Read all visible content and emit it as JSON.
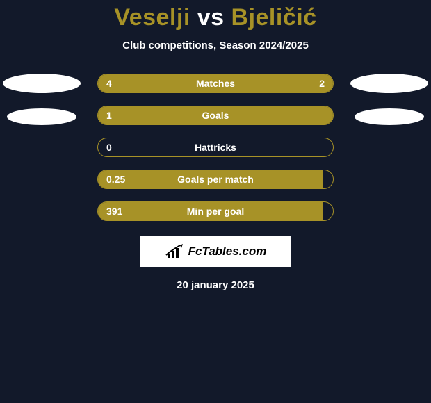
{
  "title_player1": "Veselji",
  "title_vs": "vs",
  "title_player2": "Bjeličić",
  "title_color_player": "#a79227",
  "title_color_vs": "#ffffff",
  "subtitle": "Club competitions, Season 2024/2025",
  "colors": {
    "bar_fill": "#a79227",
    "bar_border": "#a79227",
    "background": "#12192a",
    "text": "#ffffff"
  },
  "player_shapes": {
    "left": {
      "show_big": true,
      "show_small": true
    },
    "right": {
      "show_big": true,
      "show_small": true
    }
  },
  "bars": [
    {
      "label": "Matches",
      "left_value": "4",
      "right_value": "2",
      "left_pct": 66,
      "right_pct": 34
    },
    {
      "label": "Goals",
      "left_value": "1",
      "right_value": "",
      "left_pct": 100,
      "right_pct": 0
    },
    {
      "label": "Hattricks",
      "left_value": "0",
      "right_value": "",
      "left_pct": 0,
      "right_pct": 0
    },
    {
      "label": "Goals per match",
      "left_value": "0.25",
      "right_value": "",
      "left_pct": 96,
      "right_pct": 0
    },
    {
      "label": "Min per goal",
      "left_value": "391",
      "right_value": "",
      "left_pct": 96,
      "right_pct": 0
    }
  ],
  "logo_text": "FcTables.com",
  "date": "20 january 2025"
}
